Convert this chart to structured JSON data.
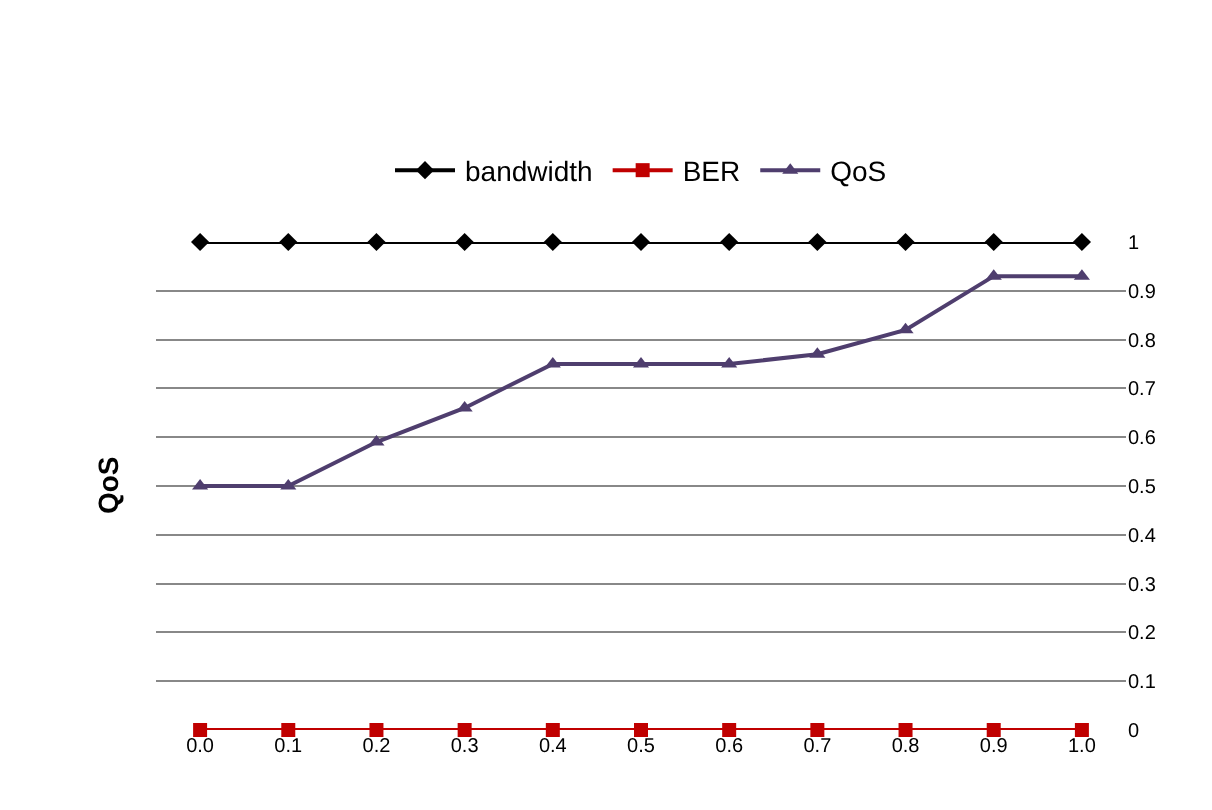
{
  "chart_data": {
    "type": "line",
    "ylabel": "QoS",
    "categories": [
      "0.0",
      "0.1",
      "0.2",
      "0.3",
      "0.4",
      "0.5",
      "0.6",
      "0.7",
      "0.8",
      "0.9",
      "1.0"
    ],
    "series": [
      {
        "name": "bandwidth",
        "color": "#000000",
        "marker": "diamond",
        "values": [
          1,
          1,
          1,
          1,
          1,
          1,
          1,
          1,
          1,
          1,
          1
        ]
      },
      {
        "name": "BER",
        "color": "#c00000",
        "marker": "square",
        "values": [
          0,
          0,
          0,
          0,
          0,
          0,
          0,
          0,
          0,
          0,
          0
        ]
      },
      {
        "name": "QoS",
        "color": "#4f3e6e",
        "marker": "triangle",
        "values": [
          0.5,
          0.5,
          0.59,
          0.66,
          0.75,
          0.75,
          0.75,
          0.77,
          0.82,
          0.93,
          0.93
        ]
      }
    ],
    "ylim": [
      0,
      1
    ],
    "yticks": [
      0,
      0.1,
      0.2,
      0.3,
      0.4,
      0.5,
      0.6,
      0.7,
      0.8,
      0.9,
      1
    ],
    "grid": "y",
    "legend": "top"
  }
}
